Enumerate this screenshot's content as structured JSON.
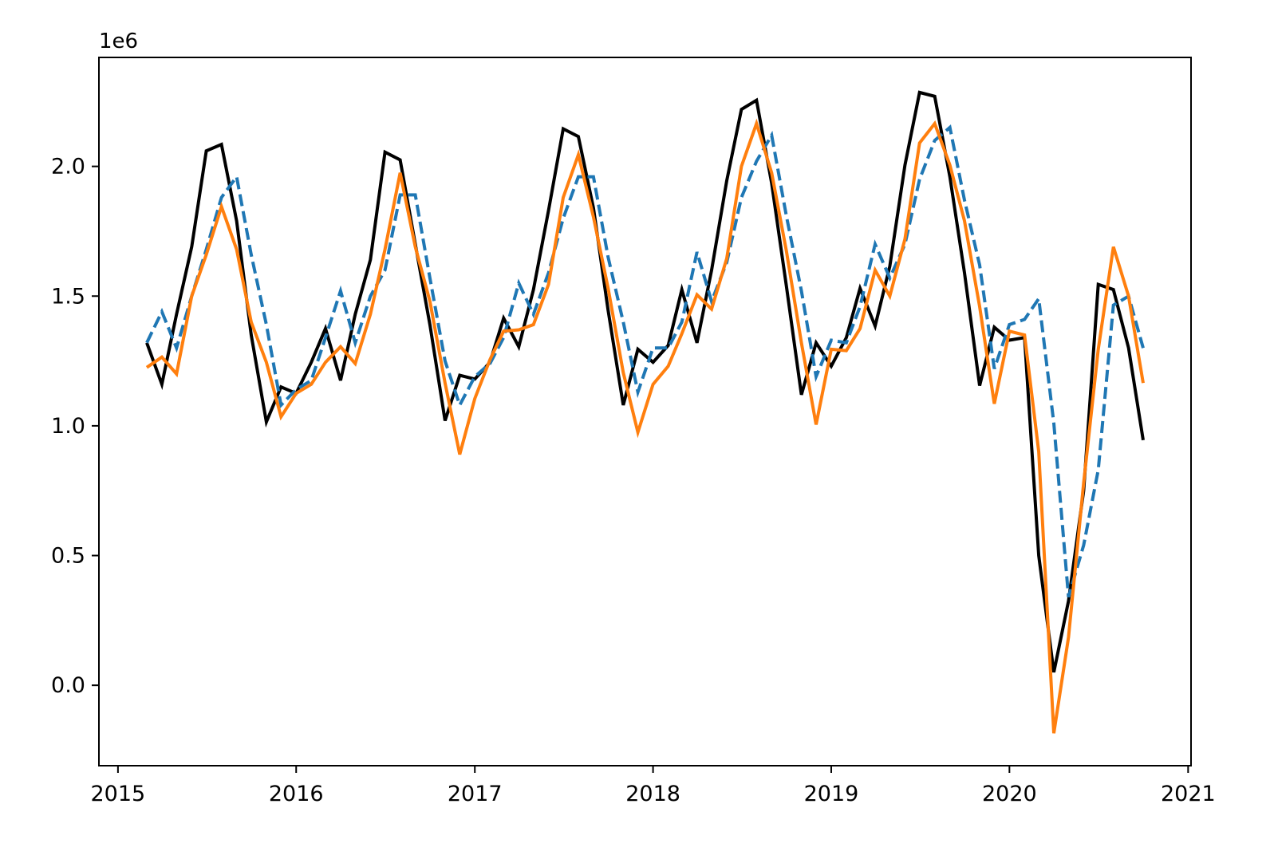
{
  "chart_data": {
    "type": "line",
    "title": "",
    "xlabel": "",
    "ylabel": "",
    "offset_label": "1e6",
    "xlim": [
      "2014-11-23",
      "2021-01-07"
    ],
    "ylim": [
      -310000,
      2420000
    ],
    "x_ticks": [
      {
        "value": "2015-01-01",
        "label": "2015"
      },
      {
        "value": "2016-01-01",
        "label": "2016"
      },
      {
        "value": "2017-01-01",
        "label": "2017"
      },
      {
        "value": "2018-01-01",
        "label": "2018"
      },
      {
        "value": "2019-01-01",
        "label": "2019"
      },
      {
        "value": "2020-01-01",
        "label": "2020"
      },
      {
        "value": "2021-01-01",
        "label": "2021"
      }
    ],
    "y_ticks": [
      {
        "value": 0,
        "label": "0.0"
      },
      {
        "value": 500000,
        "label": "0.5"
      },
      {
        "value": 1000000,
        "label": "1.0"
      },
      {
        "value": 1500000,
        "label": "1.5"
      },
      {
        "value": 2000000,
        "label": "2.0"
      }
    ],
    "grid": false,
    "legend": "none",
    "x": [
      "2015-03-01",
      "2015-04-01",
      "2015-05-01",
      "2015-06-01",
      "2015-07-01",
      "2015-08-01",
      "2015-09-01",
      "2015-10-01",
      "2015-11-01",
      "2015-12-01",
      "2016-01-01",
      "2016-02-01",
      "2016-03-01",
      "2016-04-01",
      "2016-05-01",
      "2016-06-01",
      "2016-07-01",
      "2016-08-01",
      "2016-09-01",
      "2016-10-01",
      "2016-11-01",
      "2016-12-01",
      "2017-01-01",
      "2017-02-01",
      "2017-03-01",
      "2017-04-01",
      "2017-05-01",
      "2017-06-01",
      "2017-07-01",
      "2017-08-01",
      "2017-09-01",
      "2017-10-01",
      "2017-11-01",
      "2017-12-01",
      "2018-01-01",
      "2018-02-01",
      "2018-03-01",
      "2018-04-01",
      "2018-05-01",
      "2018-06-01",
      "2018-07-01",
      "2018-08-01",
      "2018-09-01",
      "2018-10-01",
      "2018-11-01",
      "2018-12-01",
      "2019-01-01",
      "2019-02-01",
      "2019-03-01",
      "2019-04-01",
      "2019-05-01",
      "2019-06-01",
      "2019-07-01",
      "2019-08-01",
      "2019-09-01",
      "2019-10-01",
      "2019-11-01",
      "2019-12-01",
      "2020-01-01",
      "2020-02-01",
      "2020-03-01",
      "2020-04-01",
      "2020-05-01",
      "2020-06-01",
      "2020-07-01",
      "2020-08-01",
      "2020-09-01",
      "2020-10-01"
    ],
    "series": [
      {
        "color": "#000000",
        "dash": "solid",
        "values": [
          1320000,
          1160000,
          1430000,
          1690000,
          2060000,
          2085000,
          1790000,
          1350000,
          1015000,
          1150000,
          1125000,
          1245000,
          1375000,
          1175000,
          1430000,
          1640000,
          2055000,
          2025000,
          1700000,
          1390000,
          1020000,
          1195000,
          1180000,
          1245000,
          1415000,
          1305000,
          1525000,
          1830000,
          2145000,
          2115000,
          1840000,
          1445000,
          1080000,
          1295000,
          1245000,
          1310000,
          1525000,
          1320000,
          1600000,
          1945000,
          2220000,
          2255000,
          1935000,
          1540000,
          1120000,
          1320000,
          1230000,
          1340000,
          1530000,
          1385000,
          1615000,
          2005000,
          2285000,
          2270000,
          1960000,
          1590000,
          1155000,
          1380000,
          1330000,
          1340000,
          500000,
          50000,
          325000,
          750000,
          1545000,
          1525000,
          1300000,
          945000
        ]
      },
      {
        "color": "#1f77b4",
        "dash": "dashed",
        "values": [
          1320000,
          1440000,
          1300000,
          1500000,
          1680000,
          1880000,
          1960000,
          1660000,
          1390000,
          1080000,
          1140000,
          1175000,
          1340000,
          1520000,
          1320000,
          1500000,
          1600000,
          1890000,
          1890000,
          1570000,
          1250000,
          1080000,
          1190000,
          1240000,
          1340000,
          1550000,
          1430000,
          1590000,
          1800000,
          1960000,
          1960000,
          1650000,
          1400000,
          1130000,
          1300000,
          1300000,
          1400000,
          1670000,
          1480000,
          1630000,
          1880000,
          2020000,
          2120000,
          1810000,
          1520000,
          1190000,
          1330000,
          1320000,
          1460000,
          1700000,
          1570000,
          1700000,
          1950000,
          2100000,
          2150000,
          1870000,
          1620000,
          1220000,
          1390000,
          1410000,
          1490000,
          1010000,
          340000,
          540000,
          830000,
          1465000,
          1500000,
          1300000
        ]
      },
      {
        "color": "#ff7f0e",
        "dash": "solid",
        "values": [
          1225000,
          1265000,
          1200000,
          1500000,
          1660000,
          1845000,
          1680000,
          1400000,
          1245000,
          1035000,
          1125000,
          1160000,
          1245000,
          1305000,
          1240000,
          1430000,
          1680000,
          1975000,
          1690000,
          1480000,
          1165000,
          890000,
          1105000,
          1255000,
          1365000,
          1370000,
          1390000,
          1545000,
          1880000,
          2045000,
          1805000,
          1530000,
          1205000,
          975000,
          1160000,
          1230000,
          1355000,
          1505000,
          1450000,
          1645000,
          2000000,
          2165000,
          1975000,
          1675000,
          1320000,
          1005000,
          1295000,
          1290000,
          1375000,
          1600000,
          1500000,
          1720000,
          2090000,
          2165000,
          2005000,
          1790000,
          1460000,
          1085000,
          1365000,
          1350000,
          900000,
          -185000,
          185000,
          780000,
          1295000,
          1690000,
          1500000,
          1165000
        ]
      }
    ]
  }
}
